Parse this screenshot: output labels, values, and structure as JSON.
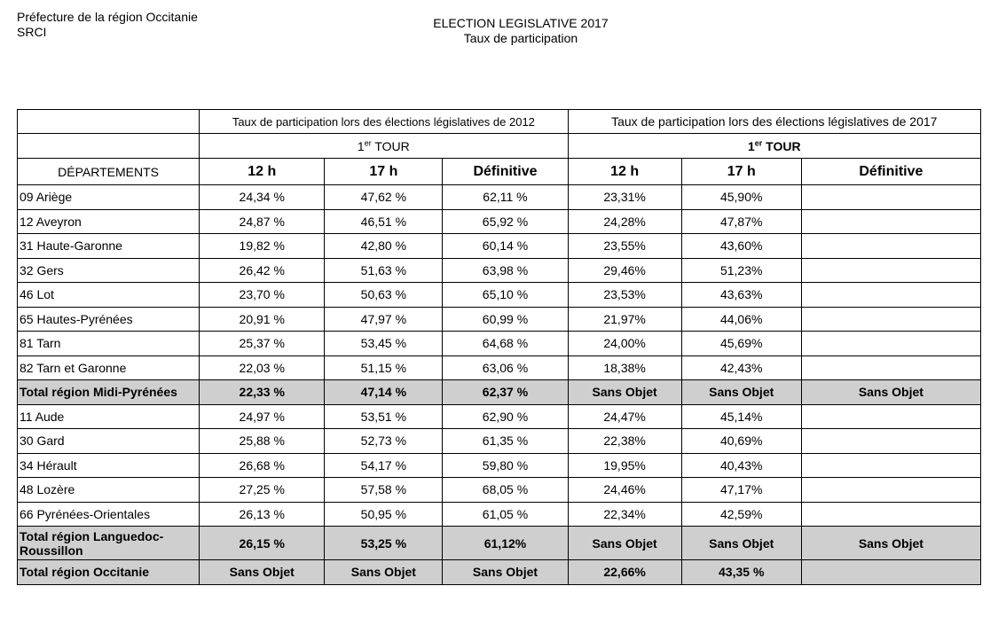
{
  "header": {
    "org_line1": "Préfecture de la région Occitanie",
    "org_line2": "SRCI",
    "title_line1": "ELECTION LEGISLATIVE 2017",
    "title_line2": "Taux de participation"
  },
  "table": {
    "group_2012": "Taux de participation lors des élections législatives de 2012",
    "group_2017": "Taux de participation lors des élections législatives de 2017",
    "tour_num": "1",
    "tour_sup": "er",
    "tour_word": " TOUR",
    "dept_header": "DÉPARTEMENTS",
    "col_12h": "12 h",
    "col_17h": "17 h",
    "col_def": "Définitive",
    "rows": [
      {
        "name": "09 Ariège",
        "a": "24,34 %",
        "b": "47,62 %",
        "c": "62,11 %",
        "d": "23,31%",
        "e": "45,90%",
        "f": ""
      },
      {
        "name": "12 Aveyron",
        "a": "24,87 %",
        "b": "46,51 %",
        "c": "65,92 %",
        "d": "24,28%",
        "e": "47,87%",
        "f": ""
      },
      {
        "name": "31 Haute-Garonne",
        "a": "19,82 %",
        "b": "42,80 %",
        "c": "60,14 %",
        "d": "23,55%",
        "e": "43,60%",
        "f": ""
      },
      {
        "name": "32 Gers",
        "a": "26,42 %",
        "b": "51,63 %",
        "c": "63,98 %",
        "d": "29,46%",
        "e": "51,23%",
        "f": ""
      },
      {
        "name": "46 Lot",
        "a": "23,70 %",
        "b": "50,63 %",
        "c": "65,10 %",
        "d": "23,53%",
        "e": "43,63%",
        "f": ""
      },
      {
        "name": "65 Hautes-Pyrénées",
        "a": "20,91 %",
        "b": "47,97 %",
        "c": "60,99 %",
        "d": "21,97%",
        "e": "44,06%",
        "f": ""
      },
      {
        "name": "81 Tarn",
        "a": "25,37 %",
        "b": "53,45 %",
        "c": "64,68 %",
        "d": "24,00%",
        "e": "45,69%",
        "f": ""
      },
      {
        "name": "82 Tarn et Garonne",
        "a": "22,03 %",
        "b": "51,15 %",
        "c": "63,06 %",
        "d": "18,38%",
        "e": "42,43%",
        "f": ""
      },
      {
        "name": "Total région Midi-Pyrénées",
        "a": "22,33 %",
        "b": "47,14 %",
        "c": "62,37 %",
        "d": "Sans Objet",
        "e": "Sans Objet",
        "f": "Sans Objet",
        "total": true
      },
      {
        "name": "11 Aude",
        "a": "24,97 %",
        "b": "53,51 %",
        "c": "62,90 %",
        "d": "24,47%",
        "e": "45,14%",
        "f": ""
      },
      {
        "name": "30 Gard",
        "a": "25,88 %",
        "b": "52,73 %",
        "c": "61,35 %",
        "d": "22,38%",
        "e": "40,69%",
        "f": ""
      },
      {
        "name": "34 Hérault",
        "a": "26,68 %",
        "b": "54,17 %",
        "c": "59,80 %",
        "d": "19,95%",
        "e": "40,43%",
        "f": ""
      },
      {
        "name": "48 Lozère",
        "a": "27,25 %",
        "b": "57,58 %",
        "c": "68,05 %",
        "d": "24,46%",
        "e": "47,17%",
        "f": ""
      },
      {
        "name": "66 Pyrénées-Orientales",
        "a": "26,13 %",
        "b": "50,95 %",
        "c": "61,05 %",
        "d": "22,34%",
        "e": "42,59%",
        "f": ""
      },
      {
        "name": "Total région Languedoc-Roussillon",
        "a": "26,15 %",
        "b": "53,25 %",
        "c": "61,12%",
        "d": "Sans Objet",
        "e": "Sans Objet",
        "f": "Sans Objet",
        "total": true,
        "tall": true
      },
      {
        "name": "Total région Occitanie",
        "a": "Sans Objet",
        "b": "Sans Objet",
        "c": "Sans Objet",
        "d": "22,66%",
        "e": "43,35 %",
        "f": "",
        "total": true
      }
    ]
  }
}
